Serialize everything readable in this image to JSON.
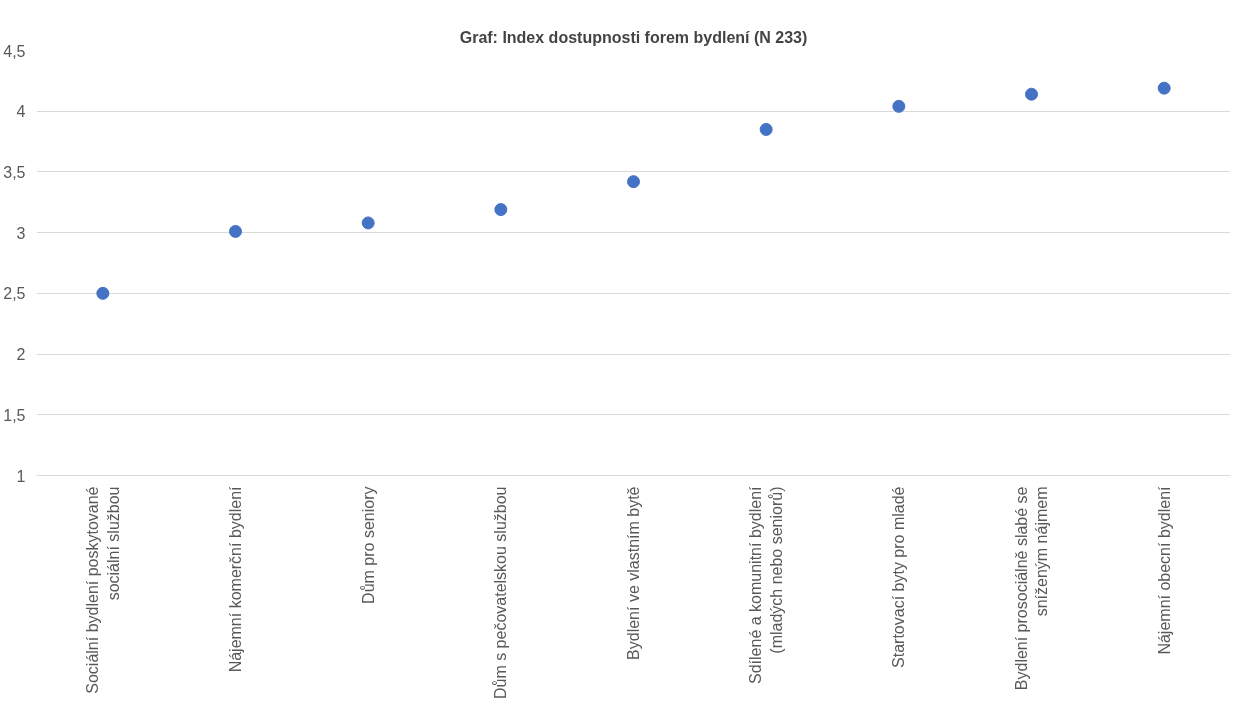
{
  "chart_data": {
    "type": "scatter",
    "title": "Graf: Index dostupnosti forem bydlení (N 233)",
    "categories": [
      "Sociální bydlení poskytované sociální službou",
      "Nájemní komerční bydlení",
      "Dům pro seniory",
      "Dům s pečovatelskou službou",
      "Bydlení ve vlastním bytě",
      "Sdílené a komunitní bydlení (mladých nebo seniorů)",
      "Startovací byty pro mladé",
      "Bydlení prosociálně slabé se sníženým nájmem",
      "Nájemní obecní bydlení"
    ],
    "values": [
      2.5,
      3.01,
      3.08,
      3.19,
      3.42,
      3.85,
      4.04,
      4.14,
      4.19
    ],
    "color": "#4472c4",
    "marker": "circle",
    "grid": "y",
    "ylim": [
      1,
      4.5
    ],
    "yticks": [
      1,
      {
        "value": 1.5,
        "label": "1,5"
      },
      2,
      {
        "value": 2.5,
        "label": "2,5"
      },
      3,
      {
        "value": 3.5,
        "label": "3,5"
      },
      4,
      {
        "value": 4.5,
        "label": "4,5"
      }
    ]
  }
}
